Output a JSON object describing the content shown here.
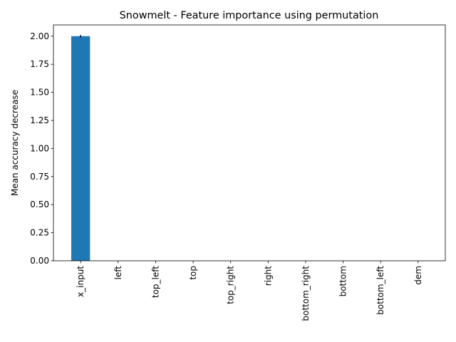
{
  "chart_data": {
    "type": "bar",
    "title": "Snowmelt - Feature importance using permutation",
    "xlabel": "",
    "ylabel": "Mean accuracy decrease",
    "categories": [
      "x_input",
      "left",
      "top_left",
      "top",
      "top_right",
      "right",
      "bottom_right",
      "bottom",
      "bottom_left",
      "dem"
    ],
    "values": [
      2.0,
      0,
      0,
      0,
      0,
      0,
      0,
      0,
      0,
      0
    ],
    "errors": [
      0.01,
      0,
      0,
      0,
      0,
      0,
      0,
      0,
      0,
      0
    ],
    "ylim": [
      0,
      2.1
    ],
    "yticks": [
      0.0,
      0.25,
      0.5,
      0.75,
      1.0,
      1.25,
      1.5,
      1.75,
      2.0
    ],
    "ytick_labels": [
      "0.00",
      "0.25",
      "0.50",
      "0.75",
      "1.00",
      "1.25",
      "1.50",
      "1.75",
      "2.00"
    ],
    "bar_color": "#1f77b4",
    "error_color": "#000000",
    "grid": false
  }
}
